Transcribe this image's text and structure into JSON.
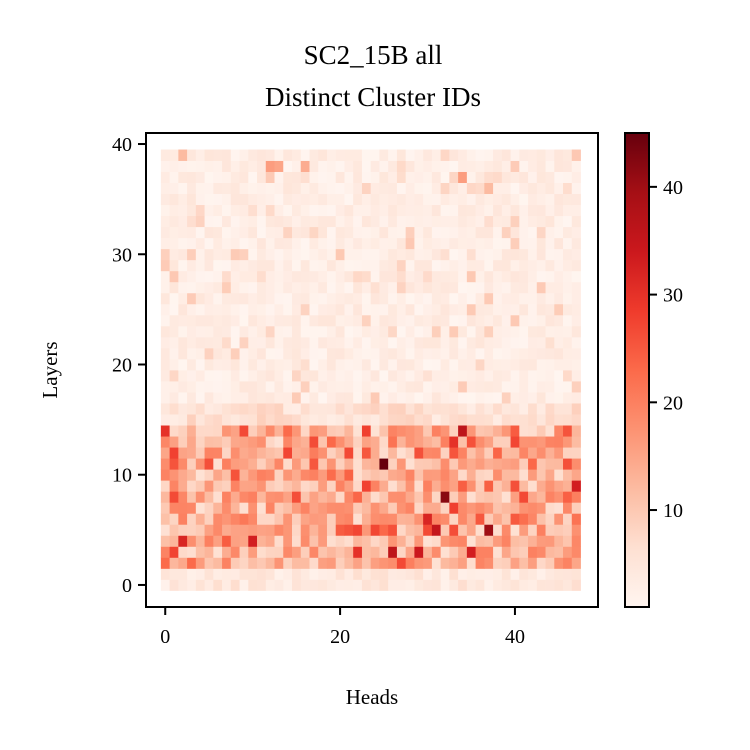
{
  "chart_data": {
    "type": "heatmap",
    "title_line1": "SC2_15B all",
    "title_line2": "Distinct Cluster IDs",
    "xlabel": "Heads",
    "ylabel": "Layers",
    "x_range": [
      0,
      47
    ],
    "y_range": [
      0,
      39
    ],
    "xlim": [
      -2.2,
      49.5
    ],
    "ylim": [
      -2,
      41
    ],
    "x_ticks": [
      "0",
      "20",
      "40"
    ],
    "y_ticks": [
      "0",
      "10",
      "20",
      "30",
      "40"
    ],
    "colormap": "Reds",
    "colorbar": {
      "vmin": 1,
      "vmax": 45,
      "ticks": [
        "10",
        "20",
        "30",
        "40"
      ]
    },
    "notes_visible_pattern": {
      "low_layers_0_to_14": "higher values, mostly 8-30, peaks ~45 near heads 25 and 32-35 at layers 7-11",
      "upper_layers_15_to_39": "mostly 1-5, occasional spots up to ~15 near layer 38-39"
    },
    "hotspots": [
      {
        "x": 25,
        "y": 11,
        "v": 45
      },
      {
        "x": 32,
        "y": 8,
        "v": 42
      },
      {
        "x": 37,
        "y": 5,
        "v": 40
      },
      {
        "x": 34,
        "y": 14,
        "v": 36
      },
      {
        "x": 47,
        "y": 9,
        "v": 33
      },
      {
        "x": 0,
        "y": 14,
        "v": 30
      },
      {
        "x": 2,
        "y": 4,
        "v": 32
      },
      {
        "x": 26,
        "y": 3,
        "v": 36
      },
      {
        "x": 33,
        "y": 13,
        "v": 30
      },
      {
        "x": 10,
        "y": 4,
        "v": 33
      },
      {
        "x": 29,
        "y": 3,
        "v": 34
      },
      {
        "x": 31,
        "y": 5,
        "v": 35
      },
      {
        "x": 35,
        "y": 3,
        "v": 33
      },
      {
        "x": 30,
        "y": 6,
        "v": 32
      },
      {
        "x": 22,
        "y": 3,
        "v": 30
      },
      {
        "x": 5,
        "y": 11,
        "v": 26
      },
      {
        "x": 12,
        "y": 38,
        "v": 16
      },
      {
        "x": 13,
        "y": 38,
        "v": 15
      },
      {
        "x": 2,
        "y": 39,
        "v": 12
      },
      {
        "x": 16,
        "y": 38,
        "v": 14
      },
      {
        "x": 34,
        "y": 37,
        "v": 16
      },
      {
        "x": 37,
        "y": 36,
        "v": 12
      },
      {
        "x": 47,
        "y": 39,
        "v": 10
      },
      {
        "x": 28,
        "y": 31,
        "v": 10
      },
      {
        "x": 1,
        "y": 28,
        "v": 10
      },
      {
        "x": 33,
        "y": 7,
        "v": 28
      },
      {
        "x": 40,
        "y": 9,
        "v": 26
      },
      {
        "x": 29,
        "y": 12,
        "v": 26
      }
    ]
  }
}
